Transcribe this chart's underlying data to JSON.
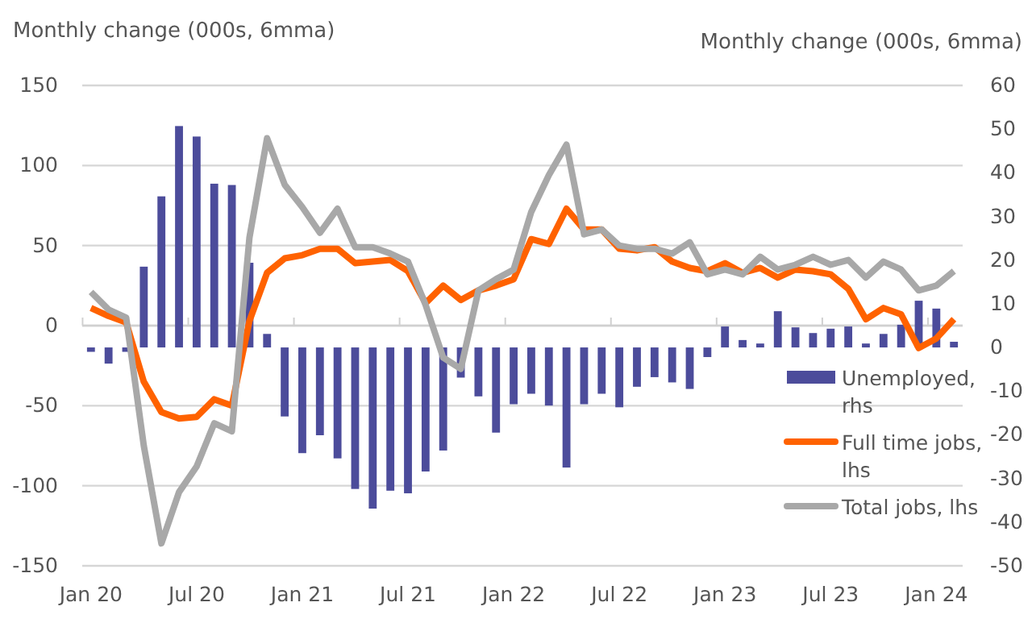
{
  "chart_data": {
    "type": "bar",
    "ylabel": "Monthly change (000s, 6mma)",
    "y2label": "Monthly change (000s, 6mma)",
    "categories": [
      "Jan 20",
      null,
      null,
      null,
      null,
      null,
      "Jul 20",
      null,
      null,
      null,
      null,
      null,
      "Jan 21",
      null,
      null,
      null,
      null,
      null,
      "Jul 21",
      null,
      null,
      null,
      null,
      null,
      "Jan 22",
      null,
      null,
      null,
      null,
      null,
      "Jul 22",
      null,
      null,
      null,
      null,
      null,
      "Jan 23",
      null,
      null,
      null,
      null,
      null,
      "Jul 23",
      null,
      null,
      null,
      null,
      null,
      "Jan 24",
      null
    ],
    "series": [
      {
        "name": "Unemployed, rhs",
        "axis": "y2",
        "color": "#4c4c9b",
        "values": [
          -1,
          -3.7,
          -1,
          18.5,
          34.6,
          50.7,
          48.3,
          37.5,
          37.2,
          19.4,
          3.1,
          -15.8,
          -24.2,
          -20.1,
          -25.4,
          -32.4,
          -36.9,
          -32.8,
          -33.4,
          -28.4,
          -23.6,
          -6.9,
          -11.2,
          -19.5,
          -13,
          -10.6,
          -13.3,
          -27.5,
          -13,
          -10.6,
          -13.7,
          -9,
          -6.8,
          -8,
          -9.5,
          -2.2,
          4.8,
          1.7,
          0.9,
          8.3,
          4.6,
          3.3,
          4.3,
          4.8,
          0.9,
          3.1,
          5.2,
          10.7,
          8.9,
          1.3
        ]
      },
      {
        "name": "Full time jobs, lhs",
        "type": "line",
        "color": "#ff6200",
        "values": [
          11,
          6,
          2,
          -35,
          -54,
          -58,
          -57,
          -46,
          -50,
          3,
          33,
          42,
          44,
          48,
          48,
          39,
          40,
          41,
          34,
          14,
          25,
          16,
          22,
          25,
          29,
          54,
          51,
          73,
          60,
          60,
          48,
          47,
          49,
          40,
          36,
          34,
          39,
          33,
          36,
          30,
          35,
          34,
          32,
          23,
          4,
          11,
          7,
          -14,
          -8,
          4
        ]
      },
      {
        "name": "Total jobs, lhs",
        "type": "line",
        "color": "#a8a8a8",
        "values": [
          21,
          10,
          5,
          -75,
          -136,
          -104,
          -88,
          -61,
          -66,
          55,
          117,
          88,
          74,
          58,
          73,
          49,
          49,
          45,
          40,
          13,
          -20,
          -27,
          22,
          29,
          35,
          71,
          94,
          113,
          57,
          60,
          50,
          48,
          48,
          45,
          52,
          32,
          35,
          32,
          43,
          35,
          38,
          43,
          38,
          41,
          30,
          40,
          35,
          22,
          25,
          34
        ]
      }
    ],
    "ylim": [
      -150,
      150
    ],
    "yticks": [
      -150,
      -100,
      -50,
      0,
      50,
      100,
      150
    ],
    "y2lim": [
      -50,
      60
    ],
    "y2ticks": [
      -50,
      -40,
      -30,
      -20,
      -10,
      0,
      10,
      20,
      30,
      40,
      50,
      60
    ],
    "grid": "y",
    "legend": "right",
    "marker": "none",
    "line_style": "solid"
  }
}
